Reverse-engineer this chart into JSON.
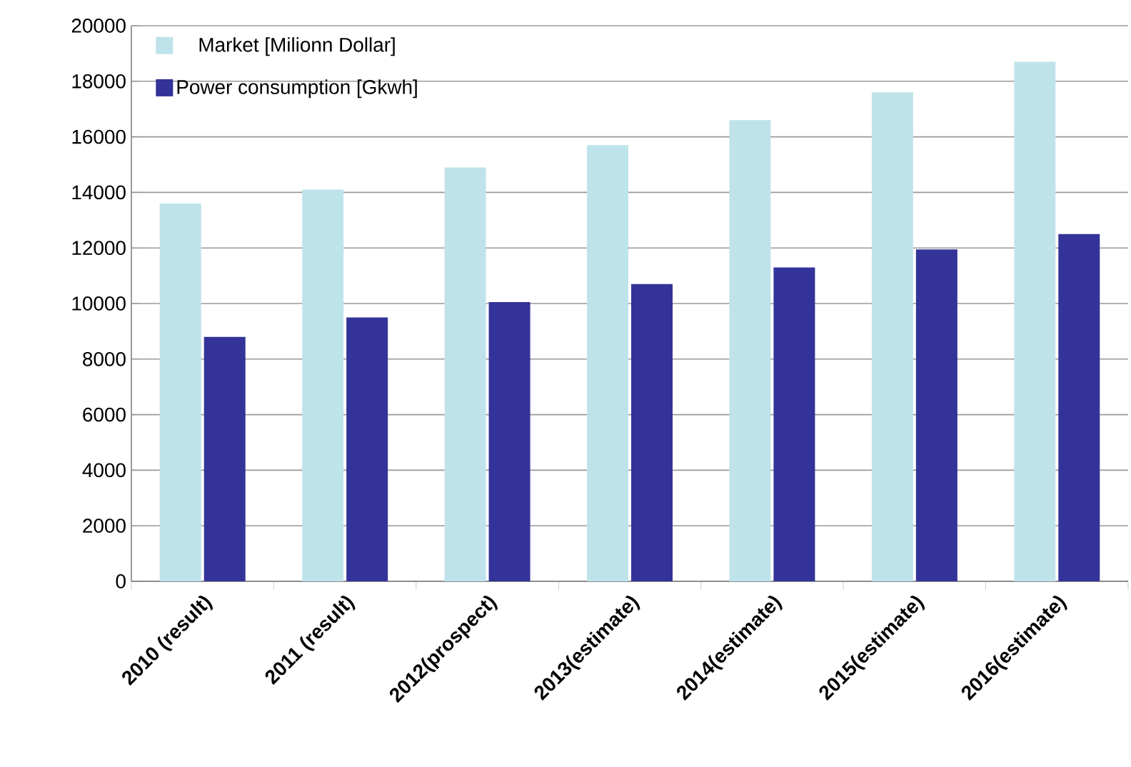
{
  "chart_data": {
    "type": "bar",
    "categories": [
      "2010  (result)",
      "2011  (result)",
      "2012(prospect)",
      "2013(estimate)",
      "2014(estimate)",
      "2015(estimate)",
      "2016(estimate)"
    ],
    "series": [
      {
        "name": "Market [Milionn   Dollar]",
        "color": "#bfe3ea",
        "values": [
          13600,
          14100,
          14900,
          15700,
          16600,
          17600,
          18700
        ]
      },
      {
        "name": "Power consumption [Gkwh]",
        "color": "#333399",
        "values": [
          8800,
          9500,
          10050,
          10700,
          11300,
          11950,
          12500
        ]
      }
    ],
    "ylim": [
      0,
      20000
    ],
    "yticks": [
      0,
      2000,
      4000,
      6000,
      8000,
      10000,
      12000,
      14000,
      16000,
      18000,
      20000
    ],
    "grid": "y",
    "legend": "top left"
  }
}
